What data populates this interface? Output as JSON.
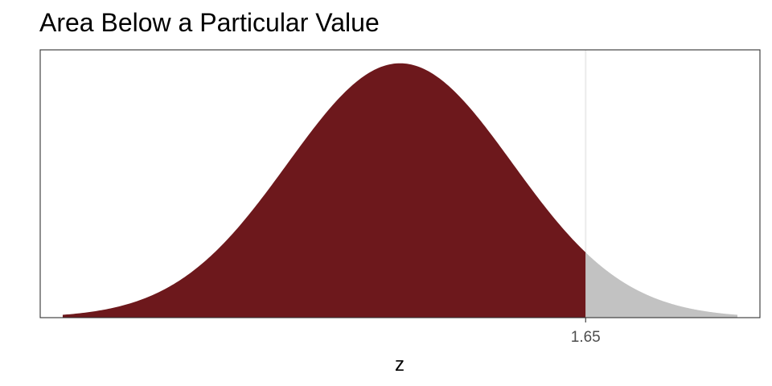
{
  "chart_data": {
    "type": "area",
    "title": "Area Below a Particular Value",
    "xlabel": "z",
    "ylabel": "",
    "distribution": "standard-normal",
    "xlim": [
      -3.2,
      3.2
    ],
    "curve_range": [
      -3,
      3
    ],
    "ylim": [
      0,
      0.42
    ],
    "cutoff": 1.65,
    "x_ticks": [
      1.65
    ],
    "x_tick_labels": [
      "1.65"
    ],
    "y_ticks": [],
    "grid": true,
    "legend": "none",
    "colors": {
      "area_below": "#6d181c",
      "area_above": "#c2c2c2",
      "gridline": "#ebebeb",
      "panel_border": "#333333",
      "tick_text": "#4d4d4d"
    }
  }
}
